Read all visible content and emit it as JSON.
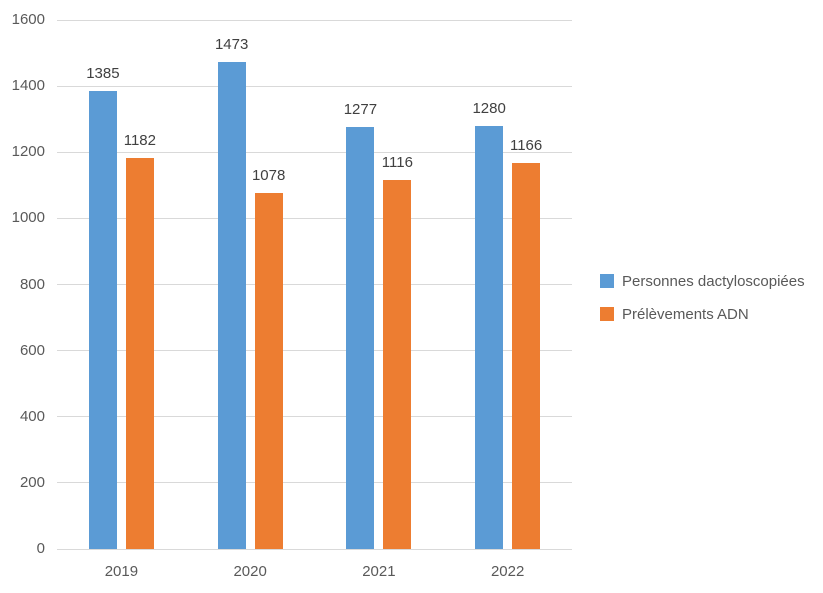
{
  "chart_data": {
    "type": "bar",
    "title": "",
    "categories": [
      "2019",
      "2020",
      "2021",
      "2022"
    ],
    "series": [
      {
        "name": "Personnes dactyloscopiées",
        "color": "#5B9BD5",
        "values": [
          1385,
          1473,
          1277,
          1280
        ]
      },
      {
        "name": "Prélèvements ADN",
        "color": "#ED7D31",
        "values": [
          1182,
          1078,
          1116,
          1166
        ]
      }
    ],
    "ylim": [
      0,
      1600
    ],
    "yticks": [
      0,
      200,
      400,
      600,
      800,
      1000,
      1200,
      1400,
      1600
    ],
    "xlabel": "",
    "ylabel": "",
    "grid": true,
    "data_labels": true,
    "legend_position": "right"
  },
  "colors": {
    "background": "#FFFFFF",
    "gridline": "#D9D9D9",
    "axis_text": "#595959",
    "data_label_text": "#404040",
    "legend_text": "#595959"
  }
}
